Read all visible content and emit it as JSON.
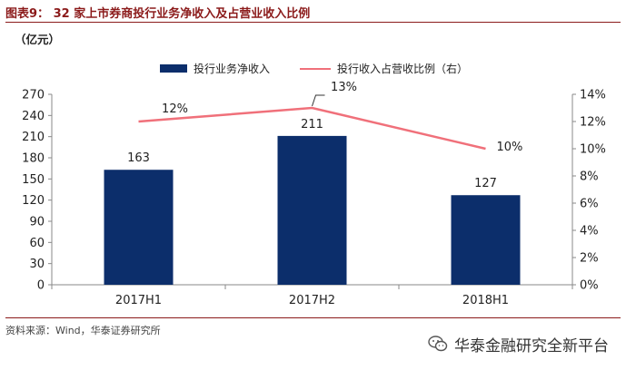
{
  "header": {
    "title": "图表9： 32 家上市券商投行业务净收入及占营业收入比例",
    "unit": "（亿元）"
  },
  "chart_data": {
    "type": "bar",
    "categories": [
      "2017H1",
      "2017H2",
      "2018H1"
    ],
    "series": [
      {
        "name": "投行业务净收入",
        "type": "bar",
        "axis": "left",
        "values": [
          163,
          211,
          127
        ],
        "color": "#0c2e6b"
      },
      {
        "name": "投行收入占营收比例（右）",
        "type": "line",
        "axis": "right",
        "values": [
          12,
          13,
          10
        ],
        "color": "#f0707a"
      }
    ],
    "data_labels": {
      "bar": [
        "163",
        "211",
        "127"
      ],
      "line": [
        "12%",
        "13%",
        "10%"
      ]
    },
    "y_left": {
      "min": 0,
      "max": 270,
      "step": 30,
      "ticks": [
        "0",
        "30",
        "60",
        "90",
        "120",
        "150",
        "180",
        "210",
        "240",
        "270"
      ]
    },
    "y_right": {
      "min": 0,
      "max": 14,
      "step": 2,
      "ticks": [
        "0%",
        "2%",
        "4%",
        "6%",
        "8%",
        "10%",
        "12%",
        "14%"
      ]
    },
    "legend_position": "top"
  },
  "footer": {
    "source": "资料来源：Wind，华泰证券研究所",
    "watermark": "华泰金融研究全新平台",
    "watermark_icon": "wechat-icon"
  }
}
